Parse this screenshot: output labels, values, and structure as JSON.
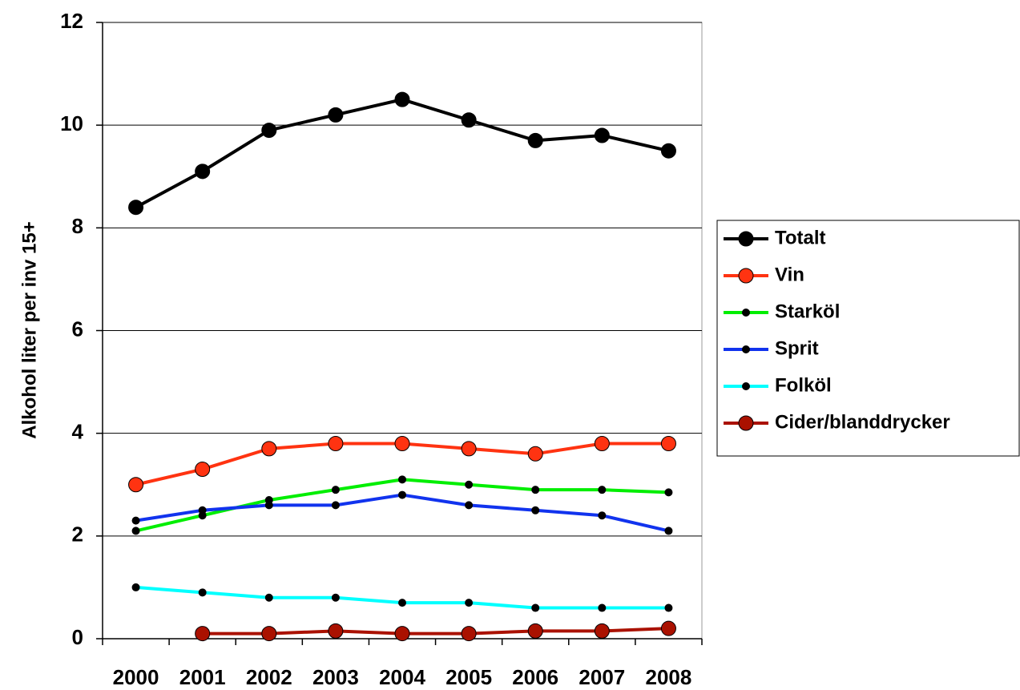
{
  "chart_data": {
    "type": "line",
    "y_label": "Alkohol liter per inv 15+",
    "categories": [
      "2000",
      "2001",
      "2002",
      "2003",
      "2004",
      "2005",
      "2006",
      "2007",
      "2008"
    ],
    "series": [
      {
        "name": "Totalt",
        "color": "#000000",
        "marker": "large",
        "values": [
          8.4,
          9.1,
          9.9,
          10.2,
          10.5,
          10.1,
          9.7,
          9.8,
          9.5
        ]
      },
      {
        "name": "Vin",
        "color": "#ff3311",
        "marker": "large",
        "values": [
          3.0,
          3.3,
          3.7,
          3.8,
          3.8,
          3.7,
          3.6,
          3.8,
          3.8
        ]
      },
      {
        "name": "Starköl",
        "color": "#00ee00",
        "marker": "small",
        "values": [
          2.1,
          2.4,
          2.7,
          2.9,
          3.1,
          3.0,
          2.9,
          2.9,
          2.85
        ]
      },
      {
        "name": "Sprit",
        "color": "#1133ee",
        "marker": "small",
        "values": [
          2.3,
          2.5,
          2.6,
          2.6,
          2.8,
          2.6,
          2.5,
          2.4,
          2.1
        ]
      },
      {
        "name": "Folköl",
        "color": "#00ffff",
        "marker": "small",
        "values": [
          1.0,
          0.9,
          0.8,
          0.8,
          0.7,
          0.7,
          0.6,
          0.6,
          0.6
        ]
      },
      {
        "name": "Cider/blanddrycker",
        "color": "#aa1100",
        "marker": "large",
        "values": [
          null,
          0.1,
          0.1,
          0.15,
          0.1,
          0.1,
          0.15,
          0.15,
          0.2
        ]
      }
    ],
    "ylim": [
      0,
      12
    ],
    "yticks": [
      0,
      2,
      4,
      6,
      8,
      10,
      12
    ],
    "grid": true,
    "legend": "right"
  }
}
